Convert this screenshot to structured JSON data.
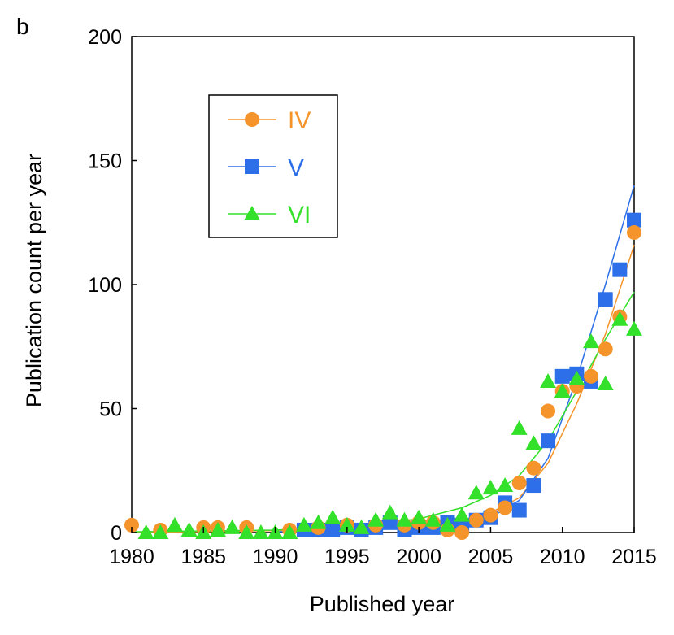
{
  "chart_data": {
    "type": "scatter",
    "panel_label": "b",
    "title": "",
    "xlabel": "Published year",
    "ylabel": "Publication count per year",
    "xlim": [
      1980,
      2015
    ],
    "ylim": [
      0,
      200
    ],
    "xticks": [
      "1980",
      "1985",
      "1990",
      "1995",
      "2000",
      "2005",
      "2010",
      "2015"
    ],
    "yticks": [
      "0",
      "50",
      "100",
      "150",
      "200"
    ],
    "grid": false,
    "legend_position": "top-left",
    "series": [
      {
        "name": "IV",
        "color": "#f5942b",
        "marker": "circle",
        "x": [
          1980,
          1982,
          1985,
          1986,
          1988,
          1991,
          1993,
          1995,
          1997,
          1999,
          2000,
          2001,
          2002,
          2003,
          2004,
          2005,
          2006,
          2007,
          2008,
          2009,
          2010,
          2011,
          2012,
          2013,
          2014,
          2015
        ],
        "y": [
          3,
          1,
          2,
          2,
          2,
          1,
          2,
          3,
          3,
          3,
          4,
          4,
          1,
          0,
          5,
          7,
          10,
          20,
          26,
          49,
          57,
          59,
          63,
          74,
          87,
          121
        ],
        "fit": [
          [
            1980,
            0
          ],
          [
            1990,
            0.8
          ],
          [
            1995,
            1.5
          ],
          [
            2000,
            3
          ],
          [
            2003,
            5
          ],
          [
            2005,
            8
          ],
          [
            2007,
            14
          ],
          [
            2009,
            28
          ],
          [
            2011,
            52
          ],
          [
            2013,
            80
          ],
          [
            2015,
            116
          ]
        ]
      },
      {
        "name": "V",
        "color": "#2c6fe8",
        "marker": "square",
        "x": [
          1992,
          1993,
          1994,
          1995,
          1996,
          1997,
          1998,
          1999,
          2000,
          2001,
          2002,
          2003,
          2004,
          2005,
          2006,
          2007,
          2008,
          2009,
          2010,
          2011,
          2012,
          2013,
          2014,
          2015
        ],
        "y": [
          1,
          1,
          1,
          2,
          1,
          2,
          4,
          1,
          2,
          2,
          4,
          3,
          5,
          6,
          12,
          9,
          19,
          37,
          63,
          64,
          61,
          94,
          106,
          126
        ],
        "fit": [
          [
            1990,
            0.3
          ],
          [
            1995,
            0.8
          ],
          [
            2000,
            2
          ],
          [
            2003,
            3.5
          ],
          [
            2005,
            6
          ],
          [
            2007,
            13
          ],
          [
            2009,
            30
          ],
          [
            2011,
            62
          ],
          [
            2013,
            100
          ],
          [
            2015,
            140
          ]
        ]
      },
      {
        "name": "VI",
        "color": "#33e02a",
        "marker": "triangle",
        "x": [
          1981,
          1982,
          1983,
          1984,
          1985,
          1986,
          1987,
          1988,
          1989,
          1990,
          1991,
          1992,
          1993,
          1994,
          1995,
          1996,
          1997,
          1998,
          1999,
          2000,
          2001,
          2002,
          2003,
          2004,
          2005,
          2006,
          2007,
          2008,
          2009,
          2010,
          2011,
          2012,
          2013,
          2014,
          2015
        ],
        "y": [
          0,
          0,
          3,
          1,
          0,
          1,
          2,
          0,
          0,
          0,
          0,
          3,
          4,
          6,
          3,
          2,
          5,
          8,
          5,
          6,
          5,
          3,
          7,
          16,
          18,
          19,
          42,
          36,
          61,
          57,
          62,
          77,
          60,
          86,
          82
        ],
        "fit": [
          [
            1980,
            0.3
          ],
          [
            1990,
            1
          ],
          [
            1995,
            2.5
          ],
          [
            2000,
            5.5
          ],
          [
            2003,
            10
          ],
          [
            2005,
            15
          ],
          [
            2007,
            23
          ],
          [
            2009,
            37
          ],
          [
            2011,
            57
          ],
          [
            2013,
            78
          ],
          [
            2015,
            97
          ]
        ]
      }
    ]
  }
}
